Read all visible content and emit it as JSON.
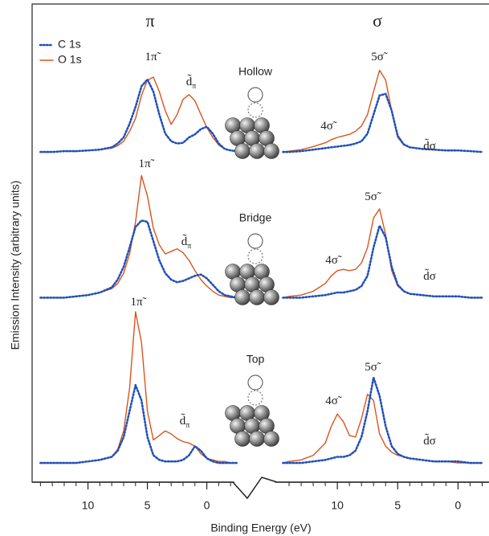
{
  "chart_data": {
    "type": "line",
    "xlabel": "Binding Energy (eV)",
    "ylabel": "Emission Intensity (arbitrary units)",
    "series": [
      {
        "name": "C 1s",
        "color": "#2151b8",
        "style": "dotted"
      },
      {
        "name": "O 1s",
        "color": "#d9541e",
        "style": "solid"
      }
    ],
    "columns": [
      {
        "title": "π",
        "x": [
          14,
          13,
          12,
          11,
          10,
          9,
          8,
          7.5,
          7,
          6.5,
          6,
          5.5,
          5,
          4.5,
          4,
          3.5,
          3,
          2.5,
          2,
          1.5,
          1,
          0.5,
          0,
          -0.5,
          -1,
          -1.5,
          -2,
          -2.5
        ],
        "xlim": [
          14.7,
          -2.8
        ],
        "xticks": [
          10,
          5,
          0
        ],
        "xminorticks": [
          14,
          13,
          12,
          11,
          9,
          8,
          7,
          6,
          4,
          3,
          2,
          1,
          -1,
          -2
        ]
      },
      {
        "title": "σ",
        "x": [
          14.5,
          14,
          13,
          12,
          11,
          10.5,
          10,
          9.5,
          9,
          8.5,
          8,
          7.5,
          7,
          6.5,
          6,
          5.5,
          5,
          4.5,
          4,
          3,
          2,
          1,
          0,
          -1,
          -2
        ],
        "xlim": [
          14.8,
          -2.3
        ],
        "xticks": [
          10,
          5,
          0
        ],
        "xminorticks": [
          14,
          13,
          12,
          11,
          9,
          8,
          7,
          6,
          4,
          3,
          2,
          1,
          -1,
          -2
        ]
      }
    ],
    "panels": [
      {
        "site": "Hollow",
        "ylim": [
          0,
          11
        ],
        "values": [
          [
            [
              0.1,
              0.1,
              0.2,
              0.2,
              0.3,
              0.4,
              0.7,
              1.2,
              2,
              3.8,
              6,
              8.7,
              9.6,
              8,
              5,
              2.5,
              1.5,
              1.2,
              1.3,
              2,
              2.4,
              3.1,
              3.4,
              2.5,
              1.2,
              0.5,
              0.3,
              0.2
            ],
            [
              0.1,
              0.1,
              0.2,
              0.2,
              0.3,
              0.4,
              0.6,
              0.9,
              1.5,
              2.8,
              4.5,
              7.5,
              9.5,
              9.9,
              8,
              5.5,
              3.7,
              5,
              7,
              7.6,
              6.8,
              5,
              3.3,
              2,
              1,
              0.5,
              0.3,
              0.2
            ]
          ],
          [
            [
              0.1,
              0.1,
              0.2,
              0.4,
              0.6,
              0.7,
              0.8,
              0.9,
              1,
              1.2,
              1.5,
              2.5,
              5,
              7.5,
              7.7,
              5.5,
              2.2,
              1.1,
              0.7,
              0.5,
              0.4,
              0.3,
              0.3,
              0.2,
              0.1
            ],
            [
              0.1,
              0.2,
              0.4,
              0.8,
              1.3,
              1.7,
              2,
              2.2,
              2.4,
              2.8,
              3.5,
              5,
              8,
              10.8,
              9.5,
              5.5,
              2,
              1,
              0.7,
              0.5,
              0.4,
              0.3,
              0.3,
              0.2,
              0.1
            ]
          ]
        ],
        "annotations": [
          {
            "text": "1π̃"
          },
          {
            "text": "d̃",
            "subscript": "π"
          },
          {
            "text": "4σ̃"
          },
          {
            "text": "5σ̃"
          },
          {
            "text": "d̃σ"
          }
        ]
      },
      {
        "site": "Bridge",
        "ylim": [
          0,
          11
        ],
        "values": [
          [
            [
              0.1,
              0.1,
              0.1,
              0.2,
              0.3,
              0.5,
              0.9,
              1.5,
              2.5,
              4,
              5.6,
              6.1,
              6,
              4.5,
              3,
              2,
              1.5,
              1.3,
              1.4,
              1.6,
              1.8,
              1.9,
              1.6,
              1.1,
              0.6,
              0.3,
              0.2,
              0.1
            ],
            [
              0.1,
              0.1,
              0.1,
              0.2,
              0.3,
              0.5,
              0.8,
              1.2,
              2,
              3.5,
              6,
              9.6,
              8,
              5.5,
              4.2,
              3.5,
              3.7,
              3.9,
              3.6,
              3,
              2.2,
              1.5,
              1,
              0.6,
              0.3,
              0.2,
              0.1,
              0.1
            ]
          ],
          [
            [
              0.1,
              0.1,
              0.1,
              0.2,
              0.3,
              0.4,
              0.5,
              0.5,
              0.6,
              0.7,
              1,
              1.8,
              4,
              5.7,
              4.8,
              2.5,
              1.1,
              0.6,
              0.4,
              0.3,
              0.2,
              0.2,
              0.2,
              0.1,
              0.1
            ],
            [
              0.1,
              0.2,
              0.3,
              0.6,
              1.2,
              1.8,
              2.2,
              2.3,
              2.2,
              2.3,
              2.8,
              4,
              6.3,
              7,
              5,
              2.2,
              1,
              0.6,
              0.4,
              0.3,
              0.2,
              0.2,
              0.2,
              0.1,
              0.1
            ]
          ]
        ],
        "annotations": [
          {
            "text": "1π̃"
          },
          {
            "text": "d̃",
            "subscript": "π"
          },
          {
            "text": "4σ̃"
          },
          {
            "text": "5σ̃"
          },
          {
            "text": "d̃σ"
          }
        ]
      },
      {
        "site": "Top",
        "ylim": [
          0,
          11
        ],
        "values": [
          [
            [
              0.1,
              0.1,
              0.1,
              0.1,
              0.2,
              0.3,
              0.5,
              0.9,
              1.8,
              3.5,
              5.2,
              4.2,
              1.8,
              0.6,
              0.3,
              0.2,
              0.2,
              0.2,
              0.3,
              0.6,
              1.2,
              0.9,
              0.4,
              0.2,
              0.1,
              0.1,
              0.1,
              0.1
            ],
            [
              0.1,
              0.1,
              0.1,
              0.1,
              0.2,
              0.3,
              0.5,
              1,
              2.2,
              5,
              10,
              8,
              3.5,
              1.6,
              1.9,
              2.2,
              2,
              1.7,
              1.5,
              1.4,
              1.2,
              0.7,
              0.4,
              0.3,
              0.2,
              0.2,
              0.1,
              0.1
            ]
          ],
          [
            [
              0.1,
              0.1,
              0.1,
              0.2,
              0.3,
              0.4,
              0.5,
              0.5,
              0.6,
              0.9,
              1.8,
              3.5,
              5.7,
              4.5,
              2.5,
              1.2,
              0.7,
              0.5,
              0.4,
              0.3,
              0.2,
              0.2,
              0.2,
              0.1,
              0.1
            ],
            [
              0.1,
              0.2,
              0.3,
              0.6,
              1.4,
              2.5,
              3.3,
              2.8,
              1.9,
              1.8,
              3,
              4.6,
              4.2,
              2,
              1.2,
              0.8,
              0.6,
              0.5,
              0.4,
              0.3,
              0.2,
              0.2,
              0.1,
              0.1,
              0.1
            ]
          ]
        ],
        "annotations": [
          {
            "text": "1π̃"
          },
          {
            "text": "d̃",
            "subscript": "π"
          },
          {
            "text": "4σ̃"
          },
          {
            "text": "5σ̃"
          },
          {
            "text": "d̃σ"
          }
        ]
      }
    ]
  }
}
